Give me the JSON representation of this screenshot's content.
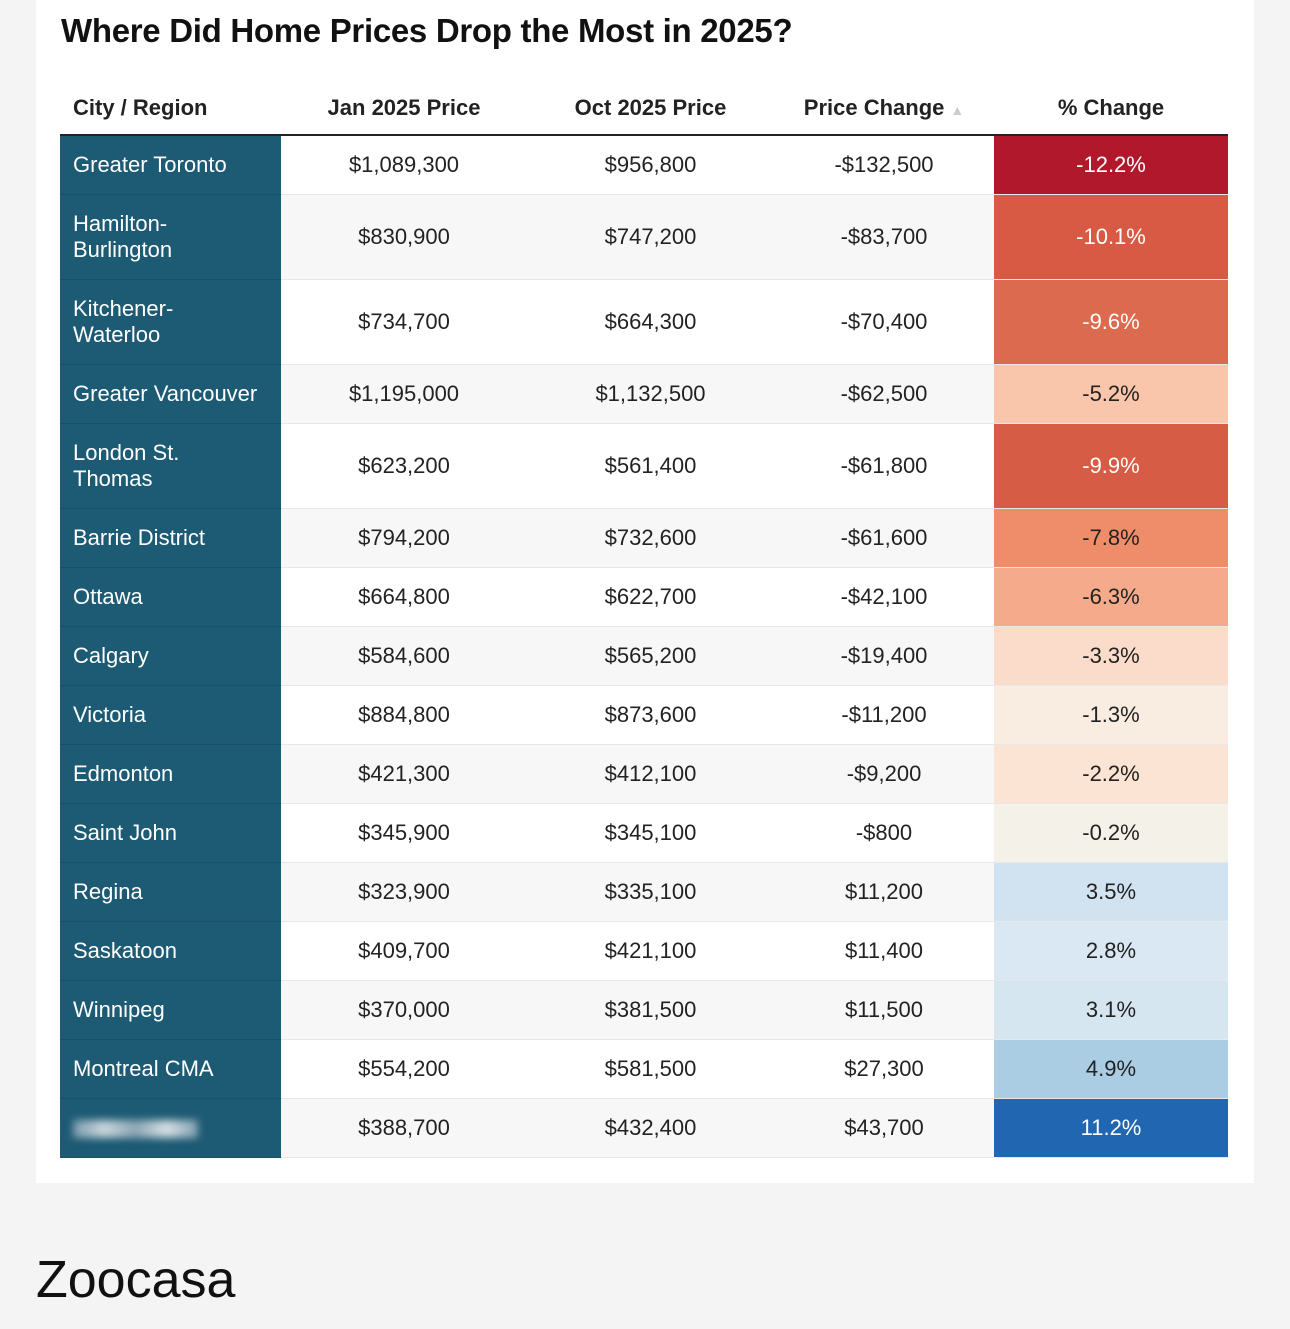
{
  "title": "Where Did Home Prices Drop the Most in 2025?",
  "table": {
    "headers": [
      "City / Region",
      "Jan 2025 Price",
      "Oct 2025 Price",
      "Price Change",
      "% Change"
    ],
    "rows": [
      {
        "city": "Greater Toronto",
        "jan": "$1,089,300",
        "oct": "$956,800",
        "change": "-$132,500",
        "pct": "-12.2%",
        "color": "#b2182b"
      },
      {
        "city": "Hamilton-\nBurlington",
        "jan": "$830,900",
        "oct": "$747,200",
        "change": "-$83,700",
        "pct": "-10.1%",
        "color": "#d85a44"
      },
      {
        "city": "Kitchener-\nWaterloo",
        "jan": "$734,700",
        "oct": "$664,300",
        "change": "-$70,400",
        "pct": "-9.6%",
        "color": "#dc6a4f"
      },
      {
        "city": "Greater Vancouver",
        "jan": "$1,195,000",
        "oct": "$1,132,500",
        "change": "-$62,500",
        "pct": "-5.2%",
        "color": "#fac6ab"
      },
      {
        "city": "London St.\nThomas",
        "jan": "$623,200",
        "oct": "$561,400",
        "change": "-$61,800",
        "pct": "-9.9%",
        "color": "#d75c45"
      },
      {
        "city": "Barrie District",
        "jan": "$794,200",
        "oct": "$732,600",
        "change": "-$61,600",
        "pct": "-7.8%",
        "color": "#ef8c6a"
      },
      {
        "city": "Ottawa",
        "jan": "$664,800",
        "oct": "$622,700",
        "change": "-$42,100",
        "pct": "-6.3%",
        "color": "#f5ab8b"
      },
      {
        "city": "Calgary",
        "jan": "$584,600",
        "oct": "$565,200",
        "change": "-$19,400",
        "pct": "-3.3%",
        "color": "#fbdccb"
      },
      {
        "city": "Victoria",
        "jan": "$884,800",
        "oct": "$873,600",
        "change": "-$11,200",
        "pct": "-1.3%",
        "color": "#f9ede1"
      },
      {
        "city": "Edmonton",
        "jan": "$421,300",
        "oct": "$412,100",
        "change": "-$9,200",
        "pct": "-2.2%",
        "color": "#fbe4d4"
      },
      {
        "city": "Saint John",
        "jan": "$345,900",
        "oct": "$345,100",
        "change": "-$800",
        "pct": "-0.2%",
        "color": "#f4f2e8"
      },
      {
        "city": "Regina",
        "jan": "$323,900",
        "oct": "$335,100",
        "change": "$11,200",
        "pct": "3.5%",
        "color": "#d1e3f0"
      },
      {
        "city": "Saskatoon",
        "jan": "$409,700",
        "oct": "$421,100",
        "change": "$11,400",
        "pct": "2.8%",
        "color": "#d9e8f2"
      },
      {
        "city": "Winnipeg",
        "jan": "$370,000",
        "oct": "$381,500",
        "change": "$11,500",
        "pct": "3.1%",
        "color": "#d5e6f1"
      },
      {
        "city": "Montreal CMA",
        "jan": "$554,200",
        "oct": "$581,500",
        "change": "$27,300",
        "pct": "4.9%",
        "color": "#aacde3"
      },
      {
        "city": null,
        "jan": "$388,700",
        "oct": "$432,400",
        "change": "$43,700",
        "pct": "11.2%",
        "color": "#2166b0"
      }
    ]
  },
  "source": "Zoocasa"
}
